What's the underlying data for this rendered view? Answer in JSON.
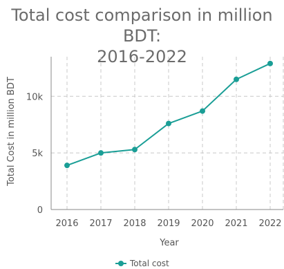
{
  "chart_data": {
    "type": "line",
    "title_lines": [
      "Total cost comparison in million BDT:",
      "2016-2022"
    ],
    "xlabel": "Year",
    "ylabel": "Total Cost in million BDT",
    "categories": [
      "2016",
      "2017",
      "2018",
      "2019",
      "2020",
      "2021",
      "2022"
    ],
    "series": [
      {
        "name": "Total cost",
        "color": "#1a9e96",
        "values": [
          3900,
          5000,
          5300,
          7600,
          8700,
          11500,
          12900
        ]
      }
    ],
    "ylim": [
      0,
      13500
    ],
    "yticks": [
      0,
      5000,
      10000
    ],
    "ytick_labels": [
      "0",
      "5k",
      "10k"
    ],
    "grid": true,
    "grid_style": "dashed",
    "legend": "bottom-center"
  }
}
